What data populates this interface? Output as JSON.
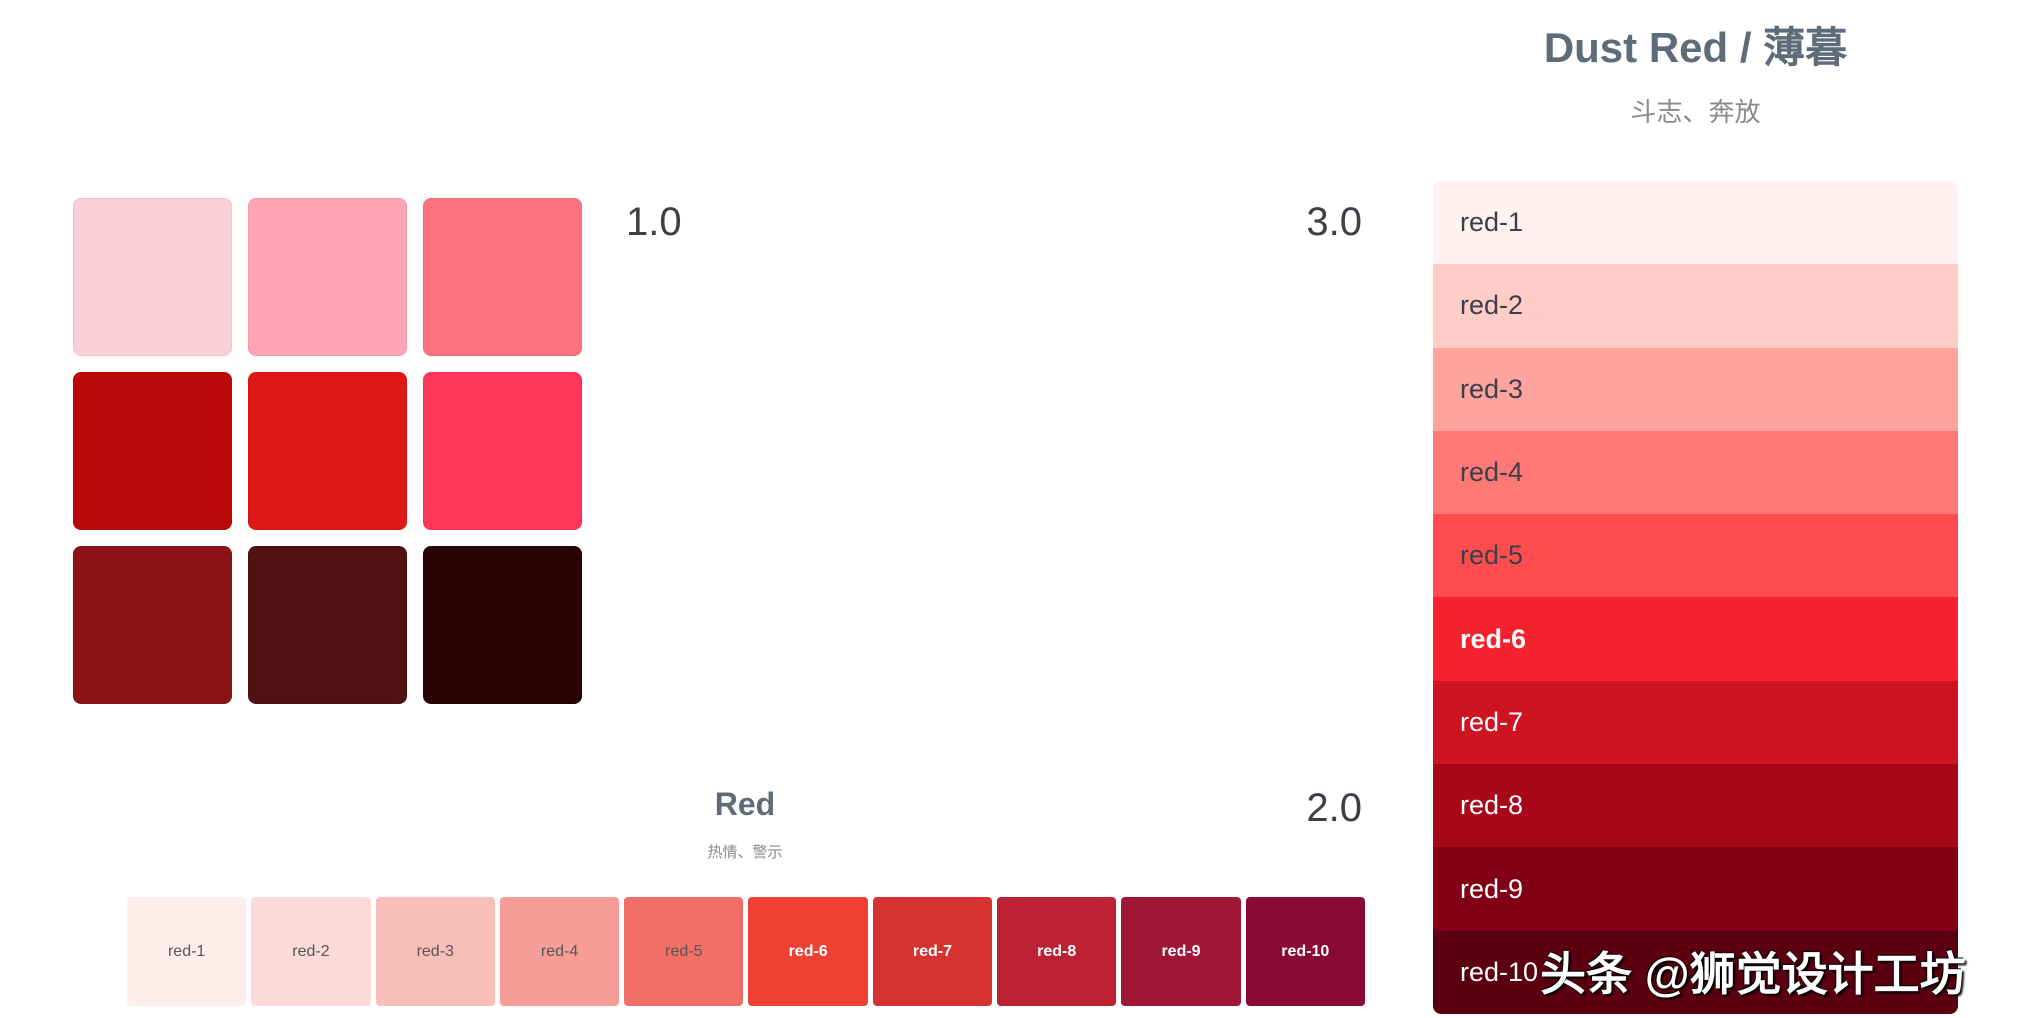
{
  "header": {
    "title": "Dust Red / 薄暮",
    "subtitle": "斗志、奔放"
  },
  "palette_list": [
    {
      "label": "red-1",
      "color": "#fff1f0"
    },
    {
      "label": "red-2",
      "color": "#ffccc7"
    },
    {
      "label": "red-3",
      "color": "#ffa39e"
    },
    {
      "label": "red-4",
      "color": "#ff7875"
    },
    {
      "label": "red-5",
      "color": "#ff4d4f"
    },
    {
      "label": "red-6",
      "color": "#f5222d"
    },
    {
      "label": "red-7",
      "color": "#cf1322"
    },
    {
      "label": "red-8",
      "color": "#a8071a"
    },
    {
      "label": "red-9",
      "color": "#820014"
    },
    {
      "label": "red-10",
      "color": "#5c0011"
    }
  ],
  "grid_colors": [
    "#fbcfd8",
    "#fea4b2",
    "#fc737f",
    "#bc0808",
    "#e01717",
    "#fe3659",
    "#8b1316",
    "#511214",
    "#2a0303"
  ],
  "versions": {
    "v1": "1.0",
    "v2": "2.0",
    "v3": "3.0"
  },
  "red_section": {
    "title": "Red",
    "subtitle": "热情、警示"
  },
  "strip": [
    {
      "label": "red-1",
      "color": "#fdeeec"
    },
    {
      "label": "red-2",
      "color": "#fcdad7"
    },
    {
      "label": "red-3",
      "color": "#f8bfb9"
    },
    {
      "label": "red-4",
      "color": "#f59d96"
    },
    {
      "label": "red-5",
      "color": "#f26f67"
    },
    {
      "label": "red-6",
      "color": "#f03f33"
    },
    {
      "label": "red-7",
      "color": "#d63232"
    },
    {
      "label": "red-8",
      "color": "#bc2234"
    },
    {
      "label": "red-9",
      "color": "#a01735"
    },
    {
      "label": "red-10",
      "color": "#8a0a36"
    }
  ],
  "watermark": "头条 @狮觉设计工坊"
}
